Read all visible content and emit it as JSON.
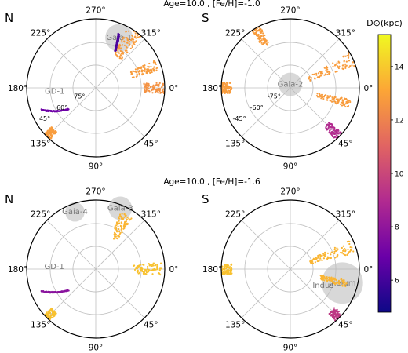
{
  "rows": [
    {
      "title": "Age=10.0 , [Fe/H]=-1.0"
    },
    {
      "title": "Age=10.0 , [Fe/H]=-1.6"
    }
  ],
  "colorbar": {
    "label": "D⊙(kpc)",
    "ticks": [
      "6",
      "8",
      "10",
      "12",
      "14"
    ],
    "tick_values": [
      6,
      8,
      10,
      12,
      14
    ],
    "vmin": 4.8,
    "vmax": 15.2,
    "colormap": "plasma",
    "stops": [
      "#0d0887",
      "#6a00a8",
      "#b12a90",
      "#e16462",
      "#fca636",
      "#f0f921"
    ]
  },
  "colors": {
    "grid": "#bfbfbf",
    "highlight": "#b8b8b8",
    "frame": "#000000"
  },
  "chart_data": [
    {
      "type": "scatter",
      "projection": "polar",
      "hemisphere_label": "N",
      "angle_labels": [
        {
          "text": "270°",
          "value": 270
        },
        {
          "text": "315°",
          "value": 315
        },
        {
          "text": "0°",
          "value": 0
        },
        {
          "text": "45°",
          "value": 45
        },
        {
          "text": "90°",
          "value": 90
        },
        {
          "text": "135°",
          "value": 135
        },
        {
          "text": "180°",
          "value": 180
        },
        {
          "text": "225°",
          "value": 225
        }
      ],
      "radial_labels": [
        {
          "text": "75°",
          "value": 75
        },
        {
          "text": "60°",
          "value": 60
        },
        {
          "text": "45°",
          "value": 45
        }
      ],
      "highlights": [
        {
          "name": "Gaia-1",
          "angle": 295,
          "r": 0.8,
          "size": 0.2
        }
      ],
      "labels": [
        {
          "text": "GD-1",
          "angle": 172,
          "r": 0.6
        }
      ],
      "streams": [
        {
          "angle": [
            158,
            142
          ],
          "r": [
            0.85,
            0.5
          ],
          "distance": 7.0
        },
        {
          "angle": [
            298,
            293
          ],
          "r": [
            0.6,
            0.85
          ],
          "distance": 6.2
        },
        {
          "angle": [
            0,
            0
          ],
          "r": [
            0.7,
            1.0
          ],
          "distance": 12.5,
          "spread": 0.25
        },
        {
          "angle": [
            135,
            135
          ],
          "r": [
            0.85,
            1.0
          ],
          "distance": 12.8,
          "spread": 0.18
        },
        {
          "angle": [
            305,
            305
          ],
          "r": [
            0.55,
            1.0
          ],
          "distance": 12.8,
          "spread": 0.35
        },
        {
          "angle": [
            340,
            340
          ],
          "r": [
            0.55,
            0.95
          ],
          "distance": 12.8,
          "spread": 0.25
        }
      ]
    },
    {
      "type": "scatter",
      "projection": "polar",
      "hemisphere_label": "S",
      "angle_labels": [
        {
          "text": "90°",
          "value": 90
        },
        {
          "text": "45°",
          "value": 45
        },
        {
          "text": "0°",
          "value": 0
        },
        {
          "text": "315°",
          "value": 315
        },
        {
          "text": "270°",
          "value": 270
        },
        {
          "text": "225°",
          "value": 225
        },
        {
          "text": "180°",
          "value": 180
        },
        {
          "text": "135°",
          "value": 135
        }
      ],
      "radial_labels": [
        {
          "text": "-75°",
          "value": -75
        },
        {
          "text": "-60°",
          "value": -60
        },
        {
          "text": "-45°",
          "value": -45
        }
      ],
      "highlights": [
        {
          "name": "Gaia-2",
          "angle": 90,
          "r": 0.05,
          "size": 0.17
        }
      ],
      "labels": [],
      "streams": [
        {
          "angle": [
            315,
            315
          ],
          "r": [
            0.75,
            1.0
          ],
          "distance": 9.0,
          "spread": 0.2
        },
        {
          "angle": [
            180,
            180
          ],
          "r": [
            0.85,
            1.0
          ],
          "distance": 12.8,
          "spread": 0.25
        },
        {
          "angle": [
            25,
            25
          ],
          "r": [
            0.3,
            1.0
          ],
          "distance": 12.8,
          "spread": 0.3
        },
        {
          "angle": [
            120,
            120
          ],
          "r": [
            0.7,
            1.0
          ],
          "distance": 12.8,
          "spread": 0.2
        },
        {
          "angle": [
            345,
            345
          ],
          "r": [
            0.4,
            0.9
          ],
          "distance": 12.8,
          "spread": 0.2
        }
      ]
    },
    {
      "type": "scatter",
      "projection": "polar",
      "hemisphere_label": "N",
      "angle_labels": [
        {
          "text": "270°",
          "value": 270
        },
        {
          "text": "315°",
          "value": 315
        },
        {
          "text": "0°",
          "value": 0
        },
        {
          "text": "45°",
          "value": 45
        },
        {
          "text": "90°",
          "value": 90
        },
        {
          "text": "135°",
          "value": 135
        },
        {
          "text": "180°",
          "value": 180
        },
        {
          "text": "225°",
          "value": 225
        }
      ],
      "radial_labels": [],
      "highlights": [
        {
          "name": "Gaia-3",
          "angle": 292,
          "r": 0.95,
          "size": 0.17
        },
        {
          "name": "Gaia-4",
          "angle": 250,
          "r": 0.88,
          "size": 0.14
        }
      ],
      "labels": [
        {
          "text": "GD-1",
          "angle": 180,
          "r": 0.6
        }
      ],
      "streams": [
        {
          "angle": [
            158,
            142
          ],
          "r": [
            0.85,
            0.5
          ],
          "distance": 7.8
        },
        {
          "angle": [
            135,
            135
          ],
          "r": [
            0.85,
            1.0
          ],
          "distance": 13.8,
          "spread": 0.18
        },
        {
          "angle": [
            0,
            0
          ],
          "r": [
            0.55,
            0.95
          ],
          "distance": 13.8,
          "spread": 0.3
        },
        {
          "angle": [
            300,
            300
          ],
          "r": [
            0.5,
            0.9
          ],
          "distance": 13.5,
          "spread": 0.3
        }
      ]
    },
    {
      "type": "scatter",
      "projection": "polar",
      "hemisphere_label": "S",
      "angle_labels": [
        {
          "text": "90°",
          "value": 90
        },
        {
          "text": "45°",
          "value": 45
        },
        {
          "text": "0°",
          "value": 0
        },
        {
          "text": "315°",
          "value": 315
        },
        {
          "text": "270°",
          "value": 270
        },
        {
          "text": "225°",
          "value": 225
        },
        {
          "text": "180°",
          "value": 180
        },
        {
          "text": "135°",
          "value": 135
        }
      ],
      "radial_labels": [],
      "highlights": [
        {
          "name": "Jhelum",
          "angle": 345,
          "r": 0.78,
          "size": 0.3
        }
      ],
      "labels": [
        {
          "text": "Indus",
          "angle": 330,
          "r": 0.55
        }
      ],
      "streams": [
        {
          "angle": [
            315,
            315
          ],
          "r": [
            0.85,
            1.0
          ],
          "distance": 9.5,
          "spread": 0.2
        },
        {
          "angle": [
            180,
            180
          ],
          "r": [
            0.85,
            1.0
          ],
          "distance": 13.8,
          "spread": 0.25
        },
        {
          "angle": [
            20,
            20
          ],
          "r": [
            0.3,
            0.95
          ],
          "distance": 13.5,
          "spread": 0.3
        },
        {
          "angle": [
            345,
            345
          ],
          "r": [
            0.45,
            0.85
          ],
          "distance": 13.5,
          "spread": 0.2
        }
      ]
    }
  ]
}
